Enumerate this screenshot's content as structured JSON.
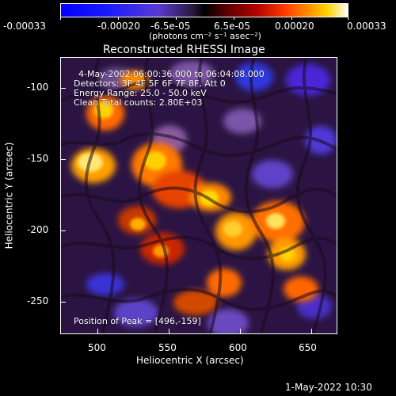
{
  "colorbar": {
    "labels": [
      "-0.00033",
      "-0.00020",
      "-6.5e-05",
      "6.5e-05",
      "0.00020",
      "0.00033"
    ],
    "units": "(photons cm⁻² s⁻¹ asec⁻²)"
  },
  "plot": {
    "title": "Reconstructed RHESSI Image",
    "annotations": {
      "time_range": "4-May-2002 06:00:36.000 to 06:04:08.000",
      "detectors": "Detectors: 3F 4F 5F 6F 7F 8F, Att 0",
      "energy_range": "Energy Range: 25.0 - 50.0 keV",
      "clean_counts": "Clean     Total counts: 2.80E+03",
      "peak_position": "Position of Peak = [496,-159]"
    },
    "xaxis": {
      "label": "Heliocentric X (arcsec)",
      "ticks": [
        "500",
        "550",
        "600",
        "650"
      ],
      "range": [
        474,
        668
      ]
    },
    "yaxis": {
      "label": "Heliocentric Y (arcsec)",
      "ticks": [
        "-100",
        "-150",
        "-200",
        "-250"
      ],
      "range": [
        -275,
        -81
      ]
    }
  },
  "footer": {
    "timestamp": "1-May-2022 10:30"
  },
  "colors": {
    "background": "#000000",
    "frame": "#ffffff",
    "low": "#0000ff",
    "mid": "#000000",
    "high": "#ffffff"
  }
}
